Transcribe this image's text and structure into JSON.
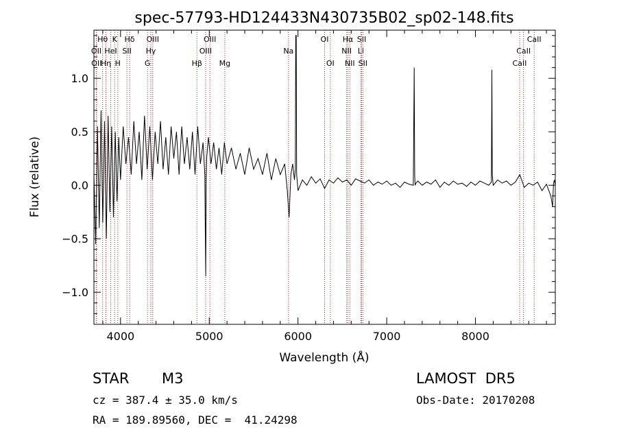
{
  "chart_data": {
    "type": "line",
    "title": "spec-57793-HD124433N430735B02_sp02-148.fits",
    "xlabel": "Wavelength (Å)",
    "ylabel": "Flux (relative)",
    "xlim": [
      3700,
      8900
    ],
    "ylim": [
      -1.3,
      1.45
    ],
    "xticks": [
      4000,
      5000,
      6000,
      7000,
      8000
    ],
    "yticks": [
      -1.0,
      -0.5,
      0.0,
      0.5,
      1.0
    ],
    "ytick_labels": [
      "−1.0",
      "−0.5",
      "0.0",
      "0.5",
      "1.0"
    ],
    "grid": false,
    "line_markers": [
      {
        "label": "Hθ",
        "x": 3798,
        "row": 0
      },
      {
        "label": "OII",
        "x": 3727,
        "row": 1
      },
      {
        "label": "OII",
        "x": 3729,
        "row": 2
      },
      {
        "label": "Hη",
        "x": 3835,
        "row": 2
      },
      {
        "label": "HeI",
        "x": 3889,
        "row": 1
      },
      {
        "label": "K",
        "x": 3934,
        "row": 0
      },
      {
        "label": "H",
        "x": 3969,
        "row": 2
      },
      {
        "label": "Hδ",
        "x": 4102,
        "row": 0
      },
      {
        "label": "SII",
        "x": 4072,
        "row": 1
      },
      {
        "label": "OIII",
        "x": 4363,
        "row": 0
      },
      {
        "label": "Hγ",
        "x": 4341,
        "row": 1
      },
      {
        "label": "G",
        "x": 4304,
        "row": 2
      },
      {
        "label": "Hβ",
        "x": 4861,
        "row": 2
      },
      {
        "label": "OIII",
        "x": 5007,
        "row": 0
      },
      {
        "label": "OIII",
        "x": 4959,
        "row": 1
      },
      {
        "label": "Mg",
        "x": 5175,
        "row": 2
      },
      {
        "label": "Na",
        "x": 5893,
        "row": 1
      },
      {
        "label": "OI",
        "x": 6300,
        "row": 0
      },
      {
        "label": "OI",
        "x": 6364,
        "row": 2
      },
      {
        "label": "Hα",
        "x": 6563,
        "row": 0
      },
      {
        "label": "NII",
        "x": 6548,
        "row": 1
      },
      {
        "label": "NII",
        "x": 6584,
        "row": 2
      },
      {
        "label": "SII",
        "x": 6717,
        "row": 0
      },
      {
        "label": "Li",
        "x": 6708,
        "row": 1
      },
      {
        "label": "SII",
        "x": 6731,
        "row": 2
      },
      {
        "label": "CaII",
        "x": 8662,
        "row": 0
      },
      {
        "label": "CaII",
        "x": 8542,
        "row": 1
      },
      {
        "label": "CaII",
        "x": 8498,
        "row": 2
      }
    ],
    "series": [
      {
        "x": [
          3700,
          3720,
          3740,
          3760,
          3780,
          3800,
          3820,
          3840,
          3860,
          3880,
          3900,
          3920,
          3940,
          3960,
          3980,
          4000,
          4030,
          4060,
          4090,
          4120,
          4150,
          4180,
          4210,
          4240,
          4270,
          4300,
          4330,
          4360,
          4390,
          4420,
          4450,
          4480,
          4510,
          4540,
          4570,
          4600,
          4630,
          4660,
          4690,
          4720,
          4750,
          4780,
          4810,
          4840,
          4870,
          4900,
          4930,
          4950,
          4955,
          4960,
          4965,
          4970,
          4990,
          5020,
          5050,
          5080,
          5110,
          5140,
          5170,
          5200,
          5250,
          5300,
          5350,
          5400,
          5450,
          5500,
          5550,
          5600,
          5650,
          5700,
          5750,
          5800,
          5850,
          5880,
          5900,
          5920,
          5940,
          5960,
          5970,
          5975,
          5980,
          5985,
          5990,
          6000,
          6050,
          6100,
          6150,
          6200,
          6250,
          6300,
          6350,
          6400,
          6450,
          6500,
          6550,
          6600,
          6650,
          6700,
          6750,
          6800,
          6850,
          6900,
          6950,
          7000,
          7050,
          7100,
          7150,
          7200,
          7250,
          7300,
          7310,
          7315,
          7320,
          7330,
          7350,
          7400,
          7450,
          7500,
          7550,
          7600,
          7650,
          7700,
          7750,
          7800,
          7850,
          7900,
          7950,
          8000,
          8050,
          8100,
          8150,
          8180,
          8185,
          8190,
          8200,
          8250,
          8300,
          8350,
          8400,
          8450,
          8500,
          8550,
          8600,
          8650,
          8700,
          8750,
          8800,
          8850,
          8870,
          8880,
          8890,
          8900
        ],
        "y": [
          0.1,
          -0.55,
          0.55,
          -0.4,
          0.7,
          -0.35,
          0.6,
          -0.5,
          0.65,
          -0.25,
          0.55,
          -0.3,
          0.5,
          -0.15,
          0.45,
          0.05,
          0.55,
          0.2,
          0.45,
          0.1,
          0.6,
          0.2,
          0.5,
          0.05,
          0.65,
          0.15,
          0.55,
          0.05,
          0.5,
          0.2,
          0.6,
          0.15,
          0.45,
          0.1,
          0.55,
          0.25,
          0.5,
          0.1,
          0.55,
          0.2,
          0.45,
          0.15,
          0.5,
          0.1,
          0.55,
          0.2,
          0.4,
          0.1,
          -0.4,
          -0.85,
          0.05,
          0.25,
          0.45,
          0.2,
          0.4,
          0.15,
          0.35,
          0.1,
          0.4,
          0.2,
          0.35,
          0.15,
          0.3,
          0.1,
          0.35,
          0.15,
          0.25,
          0.1,
          0.3,
          0.05,
          0.25,
          0.1,
          0.2,
          -0.05,
          -0.3,
          0.1,
          0.2,
          0.05,
          0.15,
          1.4,
          1.4,
          0.1,
          0.05,
          -0.05,
          0.05,
          0.0,
          0.08,
          0.02,
          0.06,
          -0.03,
          0.05,
          0.02,
          0.07,
          0.03,
          0.05,
          0.0,
          0.06,
          0.04,
          0.02,
          0.05,
          0.0,
          0.03,
          0.01,
          0.04,
          0.0,
          0.02,
          -0.02,
          0.03,
          0.01,
          0.0,
          1.1,
          0.1,
          0.0,
          0.02,
          0.04,
          0.0,
          0.03,
          0.01,
          0.05,
          -0.02,
          0.03,
          0.0,
          0.04,
          0.01,
          0.02,
          -0.01,
          0.03,
          0.0,
          0.04,
          0.02,
          0.0,
          0.03,
          1.08,
          0.1,
          0.0,
          0.05,
          0.02,
          0.04,
          0.0,
          0.03,
          0.1,
          -0.02,
          0.02,
          0.0,
          0.03,
          -0.05,
          0.01,
          -0.1,
          -0.2,
          0.02,
          0.05,
          0.0
        ]
      }
    ]
  },
  "info": {
    "object_class": "STAR",
    "subclass": "M3",
    "survey": "LAMOST  DR5",
    "cz_line": "cz = 387.4 ± 35.0 km/s",
    "obs_date": "Obs-Date: 20170208",
    "coords": "RA = 189.89560, DEC =  41.24298"
  },
  "colors": {
    "spectrum": "#000000",
    "marker_line": "#b22222",
    "axis": "#000000"
  }
}
